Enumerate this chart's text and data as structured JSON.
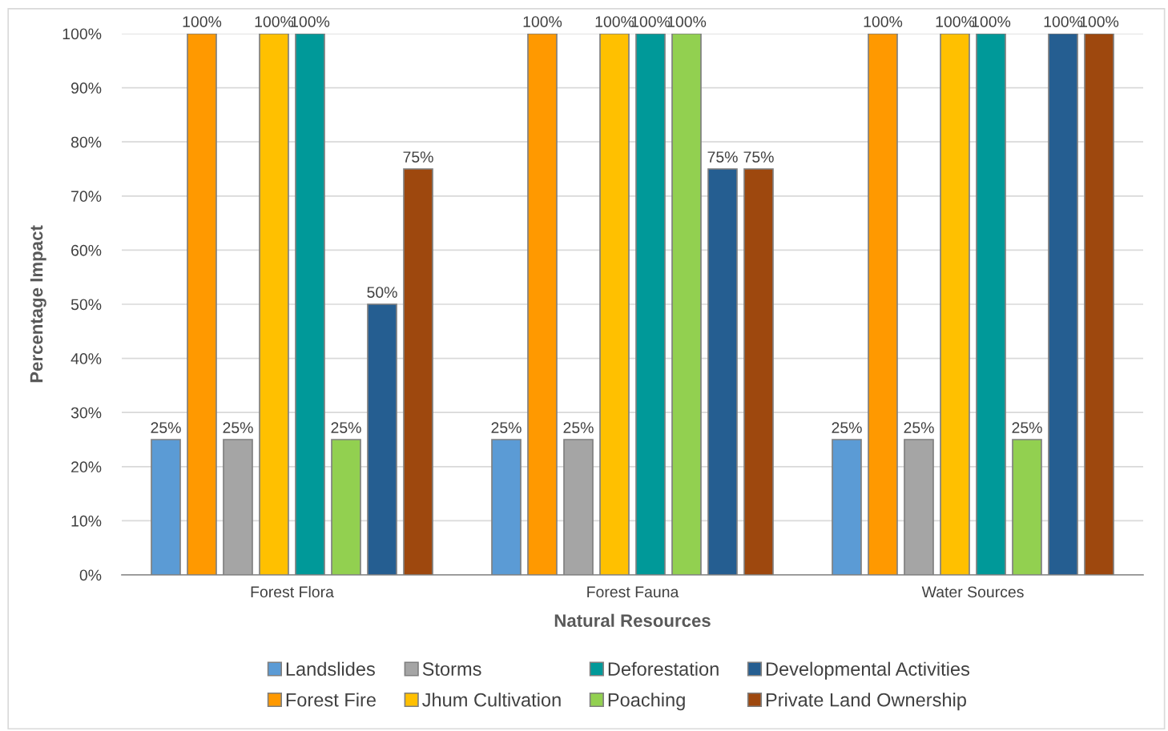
{
  "chart_data": {
    "type": "bar",
    "xlabel": "Natural Resources",
    "ylabel": "Percentage Impact",
    "categories": [
      "Forest Flora",
      "Forest Fauna",
      "Water Sources"
    ],
    "series": [
      {
        "name": "Landslides",
        "color": "#5b9bd5",
        "values": [
          25,
          25,
          25
        ],
        "value_labels": [
          "25%",
          "25%",
          "25%"
        ]
      },
      {
        "name": "Forest Fire",
        "color": "#ff9900",
        "values": [
          100,
          100,
          100
        ],
        "value_labels": [
          "100%",
          "100%",
          "100%"
        ]
      },
      {
        "name": "Storms",
        "color": "#a5a5a5",
        "values": [
          25,
          25,
          25
        ],
        "value_labels": [
          "25%",
          "25%",
          "25%"
        ]
      },
      {
        "name": "Jhum Cultivation",
        "color": "#ffc000",
        "values": [
          100,
          100,
          100
        ],
        "value_labels": [
          "100%",
          "100%",
          "100%"
        ]
      },
      {
        "name": "Deforestation",
        "color": "#009999",
        "values": [
          100,
          100,
          100
        ],
        "value_labels": [
          "100%",
          "100%",
          "100%"
        ]
      },
      {
        "name": "Poaching",
        "color": "#92d050",
        "values": [
          25,
          100,
          25
        ],
        "value_labels": [
          "25%",
          "100%",
          "25%"
        ]
      },
      {
        "name": "Developmental Activities",
        "color": "#255e91",
        "values": [
          50,
          75,
          100
        ],
        "value_labels": [
          "50%",
          "75%",
          "100%"
        ]
      },
      {
        "name": "Private Land Ownership",
        "color": "#9e480e",
        "values": [
          75,
          75,
          100
        ],
        "value_labels": [
          "75%",
          "75%",
          "100%"
        ]
      }
    ],
    "ylim": [
      0,
      100
    ],
    "yticks": [
      {
        "value": 0,
        "label": "0%"
      },
      {
        "value": 10,
        "label": "10%"
      },
      {
        "value": 20,
        "label": "20%"
      },
      {
        "value": 30,
        "label": "30%"
      },
      {
        "value": 40,
        "label": "40%"
      },
      {
        "value": 50,
        "label": "50%"
      },
      {
        "value": 60,
        "label": "60%"
      },
      {
        "value": 70,
        "label": "70%"
      },
      {
        "value": 80,
        "label": "80%"
      },
      {
        "value": 90,
        "label": "90%"
      },
      {
        "value": 100,
        "label": "100%"
      }
    ],
    "grid": "y",
    "legend": "bottom"
  }
}
